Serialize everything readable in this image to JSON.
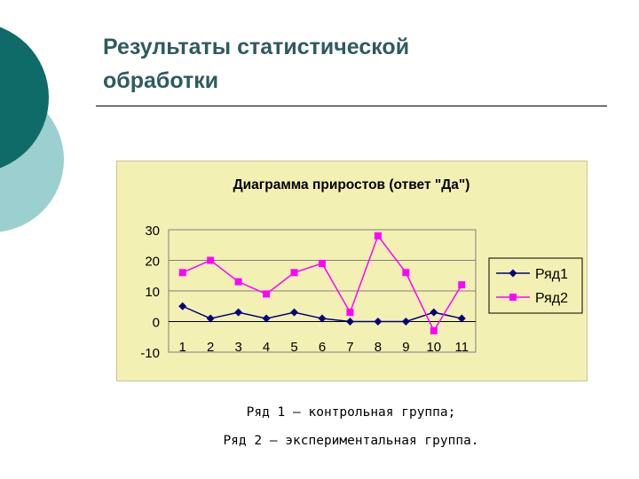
{
  "slide": {
    "title_line1": "Результаты статистической",
    "title_line2": "обработки",
    "caption_line1": "Ряд 1 – контрольная группа;",
    "caption_line2": "Ряд 2 – экспериментальная группа."
  },
  "colors": {
    "deco_dark": "#0e6b68",
    "deco_light": "#9ccfcf",
    "chart_bg": "#f3f0b3",
    "series1": "#000080",
    "series2": "#ff00ff"
  },
  "chart_data": {
    "type": "line",
    "title": "Диаграмма приростов (ответ \"Да\")",
    "xlabel": "",
    "ylabel": "",
    "categories": [
      "1",
      "2",
      "3",
      "4",
      "5",
      "6",
      "7",
      "8",
      "9",
      "10",
      "11"
    ],
    "ylim": [
      -10,
      30
    ],
    "yticks": [
      30,
      20,
      10,
      0,
      -10
    ],
    "grid": "horizontal",
    "legend_position": "right",
    "series": [
      {
        "name": "Ряд1",
        "marker": "diamond",
        "values": [
          5,
          1,
          3,
          1,
          3,
          1,
          0,
          0,
          0,
          3,
          1
        ]
      },
      {
        "name": "Ряд2",
        "marker": "square",
        "values": [
          16,
          20,
          13,
          9,
          16,
          19,
          3,
          28,
          16,
          -3,
          12
        ]
      }
    ]
  }
}
